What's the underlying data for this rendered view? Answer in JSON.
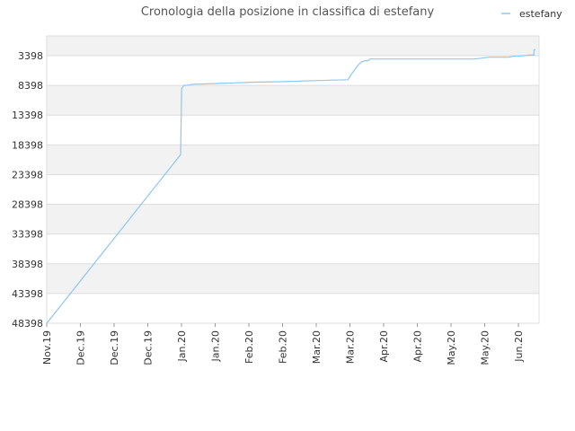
{
  "chart_data": {
    "type": "line",
    "title": "Cronologia della posizione in classifica di estefany",
    "xlabel": "",
    "ylabel": "",
    "y_inverted": true,
    "ylim": [
      48398,
      0
    ],
    "y_ticks": [
      "3398",
      "8398",
      "13398",
      "18398",
      "23398",
      "28398",
      "33398",
      "38398",
      "43398",
      "48398"
    ],
    "x_ticks": [
      "Nov.19",
      "Dec.19",
      "Dec.19",
      "Dec.19",
      "Jan.20",
      "Jan.20",
      "Feb.20",
      "Feb.20",
      "Mar.20",
      "Mar.20",
      "Apr.20",
      "Apr.20",
      "May.20",
      "May.20",
      "Jun.20"
    ],
    "grid": "horizontal bands",
    "legend_position": "top-right",
    "colors": {
      "series": "#90c6f0",
      "band": "#f2f2f2",
      "grid": "#dddddd"
    },
    "series": [
      {
        "name": "estefany",
        "points": [
          [
            0,
            48398
          ],
          [
            40,
            20050
          ],
          [
            40.3,
            8900
          ],
          [
            41,
            8400
          ],
          [
            42,
            8350
          ],
          [
            44,
            8200
          ],
          [
            50,
            8100
          ],
          [
            56,
            7980
          ],
          [
            62,
            7850
          ],
          [
            70,
            7780
          ],
          [
            80,
            7600
          ],
          [
            90,
            7450
          ],
          [
            91,
            6500
          ],
          [
            92,
            5800
          ],
          [
            93,
            5000
          ],
          [
            94,
            4500
          ],
          [
            95,
            4250
          ],
          [
            96,
            4250
          ],
          [
            96.5,
            3950
          ],
          [
            100,
            3950
          ],
          [
            110,
            3950
          ],
          [
            120,
            3950
          ],
          [
            128,
            3950
          ],
          [
            130,
            3800
          ],
          [
            132,
            3650
          ],
          [
            138,
            3650
          ],
          [
            140,
            3450
          ],
          [
            142,
            3450
          ],
          [
            144,
            3300
          ],
          [
            145.5,
            3300
          ],
          [
            145.6,
            2400
          ],
          [
            146,
            2400
          ]
        ]
      }
    ]
  }
}
